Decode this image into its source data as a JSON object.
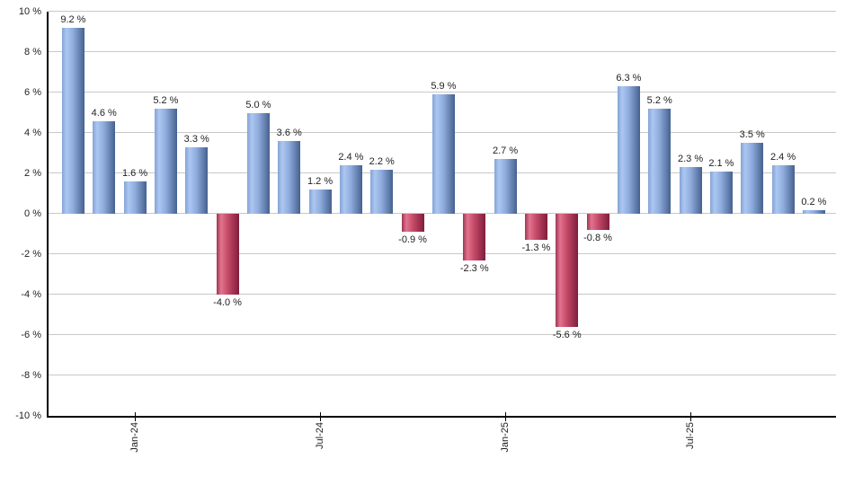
{
  "chart_data": {
    "type": "bar",
    "title": "",
    "xlabel": "",
    "ylabel": "",
    "values": [
      9.2,
      4.6,
      1.6,
      5.2,
      3.3,
      -4.0,
      5.0,
      3.6,
      1.2,
      2.4,
      2.2,
      -0.9,
      5.9,
      -2.3,
      2.7,
      -1.3,
      -5.6,
      -0.8,
      6.3,
      5.2,
      2.3,
      2.1,
      3.5,
      2.4,
      0.2
    ],
    "bar_labels": [
      "9.2 %",
      "4.6 %",
      "1.6 %",
      "5.2 %",
      "3.3 %",
      "-4.0 %",
      "5.0 %",
      "3.6 %",
      "1.2 %",
      "2.4 %",
      "2.2 %",
      "-0.9 %",
      "5.9 %",
      "-2.3 %",
      "2.7 %",
      "-1.3 %",
      "-5.6 %",
      "-0.8 %",
      "6.3 %",
      "5.2 %",
      "2.3 %",
      "2.1 %",
      "3.5 %",
      "2.4 %",
      "0.2 %"
    ],
    "ylim": [
      -10,
      10
    ],
    "grid": true,
    "legend": false,
    "y_ticks": [
      {
        "value": 10,
        "label": "10 %"
      },
      {
        "value": 8,
        "label": "8 %"
      },
      {
        "value": 6,
        "label": "6 %"
      },
      {
        "value": 4,
        "label": "4 %"
      },
      {
        "value": 2,
        "label": "2 %"
      },
      {
        "value": 0,
        "label": "0 %"
      },
      {
        "value": -2,
        "label": "-2 %"
      },
      {
        "value": -4,
        "label": "-4 %"
      },
      {
        "value": -6,
        "label": "-6 %"
      },
      {
        "value": -8,
        "label": "-8 %"
      },
      {
        "value": -10,
        "label": "-10 %"
      }
    ],
    "x_ticks": [
      {
        "bar_index": 2,
        "label": "Jan-24"
      },
      {
        "bar_index": 8,
        "label": "Jul-24"
      },
      {
        "bar_index": 14,
        "label": "Jan-25"
      },
      {
        "bar_index": 20,
        "label": "Jul-25"
      }
    ],
    "colors": {
      "positive_edge": "#84a3d6",
      "positive_light": "#abc7f1",
      "positive_mid": "#8eabdc",
      "positive_dark": "#45618f",
      "negative_edge": "#9d3553",
      "negative_light": "#e2738e",
      "negative_mid": "#c44a68",
      "negative_dark": "#801d3c",
      "gridline": "#c8c8c8",
      "axis": "#000000",
      "label_text": "#1f1f1f",
      "background": "#ffffff"
    }
  }
}
